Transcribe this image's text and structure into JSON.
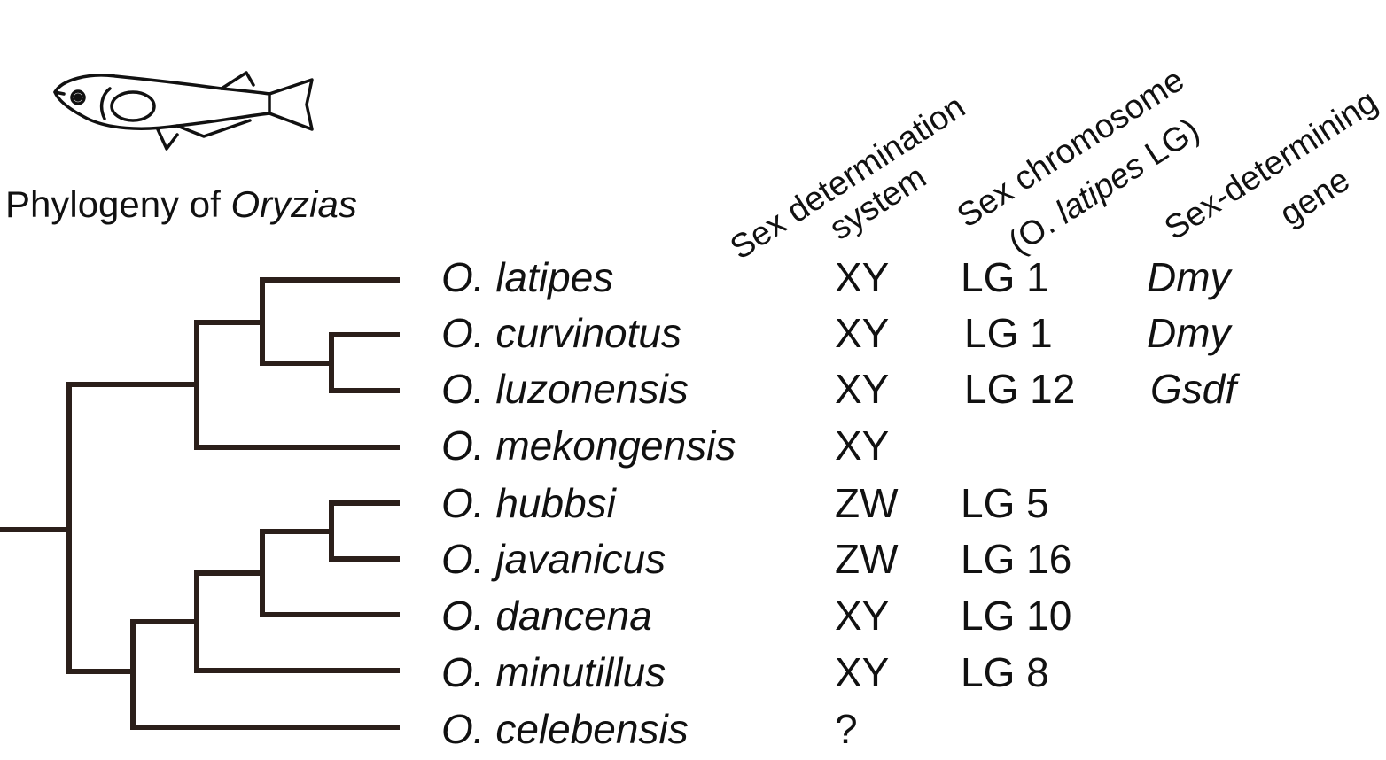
{
  "title": {
    "prefix": "Phylogeny of ",
    "genus": "Oryzias"
  },
  "headers": {
    "system_line1": "Sex determination",
    "system_line2": "system",
    "chromosome_line1": "Sex chromosome",
    "chromosome_line2_open": "(O. ",
    "chromosome_line2_italic": "latipes",
    "chromosome_line2_close": " LG)",
    "gene_line1": "Sex-determining",
    "gene_line2": "gene"
  },
  "rows": [
    {
      "species": "O. latipes",
      "system": "XY",
      "chromosome": "LG 1",
      "gene": "Dmy"
    },
    {
      "species": "O. curvinotus",
      "system": "XY",
      "chromosome": "LG 1",
      "gene": "Dmy"
    },
    {
      "species": "O. luzonensis",
      "system": "XY",
      "chromosome": "LG 12",
      "gene": "Gsdf"
    },
    {
      "species": "O. mekongensis",
      "system": "XY",
      "chromosome": "",
      "gene": ""
    },
    {
      "species": "O. hubbsi",
      "system": "ZW",
      "chromosome": "LG 5",
      "gene": ""
    },
    {
      "species": "O. javanicus",
      "system": "ZW",
      "chromosome": "LG 16",
      "gene": ""
    },
    {
      "species": "O. dancena",
      "system": "XY",
      "chromosome": "LG 10",
      "gene": ""
    },
    {
      "species": "O. minutillus",
      "system": "XY",
      "chromosome": "LG 8",
      "gene": ""
    },
    {
      "species": "O. celebensis",
      "system": "?",
      "chromosome": "",
      "gene": ""
    }
  ],
  "colors": {
    "tree": "#2b1f1a",
    "text": "#111111"
  },
  "icons": {
    "fish": "medaka-fish-icon"
  }
}
